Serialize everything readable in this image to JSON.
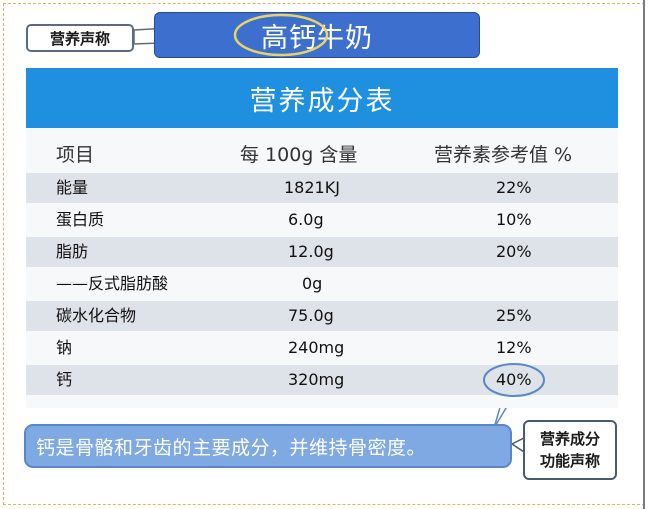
{
  "claim_label": "营养声称",
  "product_name": "高钙牛奶",
  "table": {
    "title": "营养成分表",
    "columns": [
      "项目",
      "每 100g 含量",
      "营养素参考值 %"
    ],
    "rows": [
      {
        "item": "能量",
        "amount": "1821KJ",
        "nrv": "22%"
      },
      {
        "item": "蛋白质",
        "amount": "6.0g",
        "nrv": "10%"
      },
      {
        "item": "脂肪",
        "amount": "12.0g",
        "nrv": "20%"
      },
      {
        "item": "——反式脂肪酸",
        "amount": "0g",
        "nrv": ""
      },
      {
        "item": "碳水化合物",
        "amount": "75.0g",
        "nrv": "25%"
      },
      {
        "item": "钠",
        "amount": "240mg",
        "nrv": "12%"
      },
      {
        "item": "钙",
        "amount": "320mg",
        "nrv": "40%"
      }
    ]
  },
  "function_claim": "钙是骨骼和牙齿的主要成分，并维持骨密度。",
  "function_label": [
    "营养成分",
    "功能声称"
  ],
  "colors": {
    "header_blue": "#1f8fe0",
    "banner_blue": "#3d6fcf",
    "highlight_yellow": "#e7d36a",
    "callout_blue": "#7ea9e3"
  }
}
